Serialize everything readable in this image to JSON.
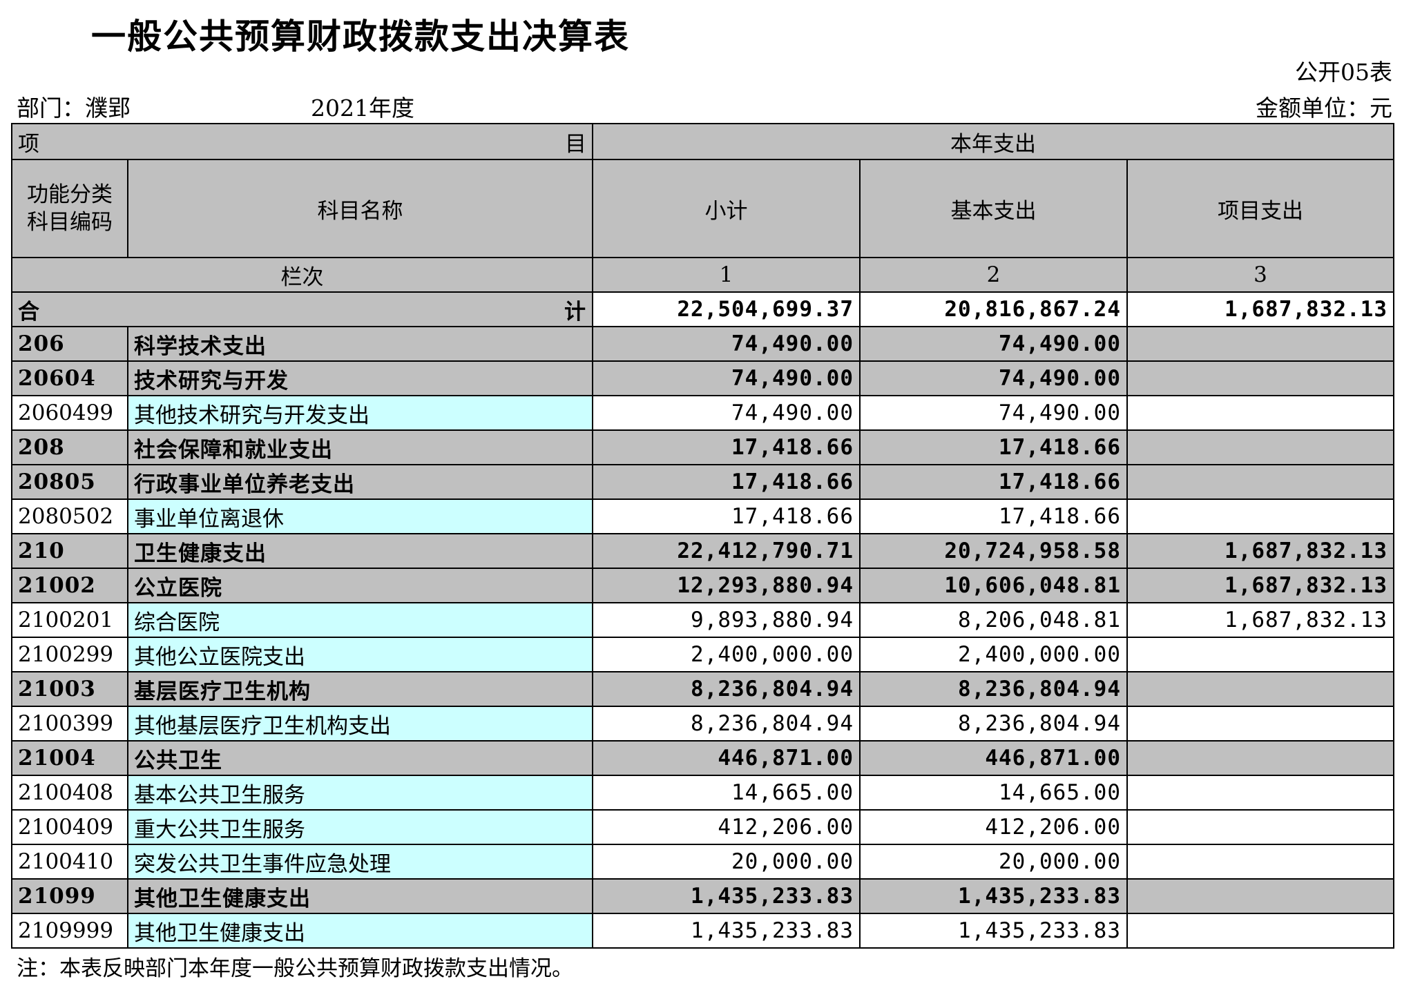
{
  "title": "一般公共预算财政拨款支出决算表",
  "form_no": "公开05表",
  "department": "部门：濮郢",
  "year": "2021年度",
  "unit": "金额单位：元",
  "header": {
    "item_left": "项",
    "item_right": "目",
    "current_year": "本年支出",
    "code_line1": "功能分类",
    "code_line2": "科目编码",
    "subject_name": "科目名称",
    "subtotal": "小计",
    "basic": "基本支出",
    "project": "项目支出",
    "column_no": "栏次",
    "col1": "1",
    "col2": "2",
    "col3": "3"
  },
  "total": {
    "left": "合",
    "right": "计",
    "subtotal": "22,504,699.37",
    "basic": "20,816,867.24",
    "project": "1,687,832.13"
  },
  "rows": [
    {
      "code": "206",
      "name": "科学技术支出",
      "subtotal": "74,490.00",
      "basic": "74,490.00",
      "project": "",
      "level": "class"
    },
    {
      "code": "20604",
      "name": "技术研究与开发",
      "subtotal": "74,490.00",
      "basic": "74,490.00",
      "project": "",
      "level": "section"
    },
    {
      "code": "2060499",
      "name": "其他技术研究与开发支出",
      "subtotal": "74,490.00",
      "basic": "74,490.00",
      "project": "",
      "level": "item"
    },
    {
      "code": "208",
      "name": "社会保障和就业支出",
      "subtotal": "17,418.66",
      "basic": "17,418.66",
      "project": "",
      "level": "class"
    },
    {
      "code": "20805",
      "name": "行政事业单位养老支出",
      "subtotal": "17,418.66",
      "basic": "17,418.66",
      "project": "",
      "level": "section"
    },
    {
      "code": "2080502",
      "name": "事业单位离退休",
      "subtotal": "17,418.66",
      "basic": "17,418.66",
      "project": "",
      "level": "item"
    },
    {
      "code": "210",
      "name": "卫生健康支出",
      "subtotal": "22,412,790.71",
      "basic": "20,724,958.58",
      "project": "1,687,832.13",
      "level": "class"
    },
    {
      "code": "21002",
      "name": "公立医院",
      "subtotal": "12,293,880.94",
      "basic": "10,606,048.81",
      "project": "1,687,832.13",
      "level": "section"
    },
    {
      "code": "2100201",
      "name": "综合医院",
      "subtotal": "9,893,880.94",
      "basic": "8,206,048.81",
      "project": "1,687,832.13",
      "level": "item"
    },
    {
      "code": "2100299",
      "name": "其他公立医院支出",
      "subtotal": "2,400,000.00",
      "basic": "2,400,000.00",
      "project": "",
      "level": "item"
    },
    {
      "code": "21003",
      "name": "基层医疗卫生机构",
      "subtotal": "8,236,804.94",
      "basic": "8,236,804.94",
      "project": "",
      "level": "section"
    },
    {
      "code": "2100399",
      "name": "其他基层医疗卫生机构支出",
      "subtotal": "8,236,804.94",
      "basic": "8,236,804.94",
      "project": "",
      "level": "item"
    },
    {
      "code": "21004",
      "name": "公共卫生",
      "subtotal": "446,871.00",
      "basic": "446,871.00",
      "project": "",
      "level": "section"
    },
    {
      "code": "2100408",
      "name": "基本公共卫生服务",
      "subtotal": "14,665.00",
      "basic": "14,665.00",
      "project": "",
      "level": "item"
    },
    {
      "code": "2100409",
      "name": "重大公共卫生服务",
      "subtotal": "412,206.00",
      "basic": "412,206.00",
      "project": "",
      "level": "item"
    },
    {
      "code": "2100410",
      "name": "突发公共卫生事件应急处理",
      "subtotal": "20,000.00",
      "basic": "20,000.00",
      "project": "",
      "level": "item"
    },
    {
      "code": "21099",
      "name": "其他卫生健康支出",
      "subtotal": "1,435,233.83",
      "basic": "1,435,233.83",
      "project": "",
      "level": "section"
    },
    {
      "code": "2109999",
      "name": "其他卫生健康支出",
      "subtotal": "1,435,233.83",
      "basic": "1,435,233.83",
      "project": "",
      "level": "item"
    }
  ],
  "note": "注：本表反映部门本年度一般公共预算财政拨款支出情况。"
}
